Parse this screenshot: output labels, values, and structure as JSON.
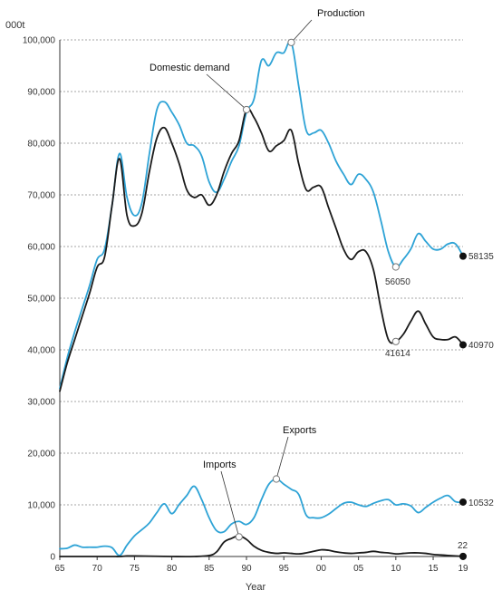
{
  "chart_data": {
    "type": "line",
    "unit_label": "000t",
    "xlabel": "Year",
    "ylabel": "",
    "ylim": [
      0,
      100000
    ],
    "yticks": [
      0,
      10000,
      20000,
      30000,
      40000,
      50000,
      60000,
      70000,
      80000,
      90000,
      100000
    ],
    "ytick_labels": [
      "0",
      "10,000",
      "20,000",
      "30,000",
      "40,000",
      "50,000",
      "60,000",
      "70,000",
      "80,000",
      "90,000",
      "100,000"
    ],
    "xlim": [
      1965,
      2019
    ],
    "xticks": [
      1965,
      1970,
      1975,
      1980,
      1985,
      1990,
      1995,
      2000,
      2005,
      2010,
      2015,
      2019
    ],
    "xtick_labels": [
      "65",
      "70",
      "75",
      "80",
      "85",
      "90",
      "95",
      "00",
      "05",
      "10",
      "15",
      "19"
    ],
    "grid": "horizontal-dashed",
    "series": [
      {
        "name": "Production",
        "color": "#2ea3d6",
        "x": [
          1965,
          1966,
          1967,
          1968,
          1969,
          1970,
          1971,
          1972,
          1973,
          1974,
          1975,
          1976,
          1977,
          1978,
          1979,
          1980,
          1981,
          1982,
          1983,
          1984,
          1985,
          1986,
          1987,
          1988,
          1989,
          1990,
          1991,
          1992,
          1993,
          1994,
          1995,
          1996,
          1997,
          1998,
          1999,
          2000,
          2001,
          2002,
          2003,
          2004,
          2005,
          2006,
          2007,
          2008,
          2009,
          2010,
          2011,
          2012,
          2013,
          2014,
          2015,
          2016,
          2017,
          2018,
          2019
        ],
        "y": [
          32500,
          38500,
          43500,
          48000,
          52500,
          57500,
          59500,
          68000,
          78000,
          69500,
          66000,
          68500,
          78000,
          86500,
          88000,
          86000,
          83500,
          80000,
          79500,
          77500,
          72500,
          70500,
          73000,
          76500,
          79500,
          86000,
          88500,
          96000,
          95000,
          97500,
          97500,
          99500,
          91000,
          82500,
          82000,
          82500,
          80000,
          76500,
          74000,
          72000,
          74000,
          73000,
          70500,
          65000,
          59000,
          56050,
          57500,
          59500,
          62500,
          61000,
          59500,
          59500,
          60500,
          60500,
          58135
        ]
      },
      {
        "name": "Domestic demand",
        "color": "#1a1a1a",
        "x": [
          1965,
          1966,
          1967,
          1968,
          1969,
          1970,
          1971,
          1972,
          1973,
          1974,
          1975,
          1976,
          1977,
          1978,
          1979,
          1980,
          1981,
          1982,
          1983,
          1984,
          1985,
          1986,
          1987,
          1988,
          1989,
          1990,
          1991,
          1992,
          1993,
          1994,
          1995,
          1996,
          1997,
          1998,
          1999,
          2000,
          2001,
          2002,
          2003,
          2004,
          2005,
          2006,
          2007,
          2008,
          2009,
          2010,
          2011,
          2012,
          2013,
          2014,
          2015,
          2016,
          2017,
          2018,
          2019
        ],
        "y": [
          32000,
          37500,
          42000,
          46500,
          51000,
          56000,
          58000,
          68000,
          77000,
          66000,
          64000,
          66500,
          74500,
          81000,
          83000,
          80000,
          76000,
          71000,
          69500,
          70000,
          68000,
          70000,
          74500,
          78000,
          80500,
          86500,
          85000,
          82000,
          78500,
          79500,
          80500,
          82500,
          76000,
          71000,
          71500,
          71500,
          67500,
          63500,
          59500,
          57500,
          59000,
          59000,
          55500,
          48000,
          42000,
          41614,
          43000,
          45500,
          47500,
          45000,
          42500,
          42000,
          42000,
          42500,
          40970
        ]
      },
      {
        "name": "Exports",
        "color": "#2ea3d6",
        "x": [
          1965,
          1966,
          1967,
          1968,
          1969,
          1970,
          1971,
          1972,
          1973,
          1974,
          1975,
          1976,
          1977,
          1978,
          1979,
          1980,
          1981,
          1982,
          1983,
          1984,
          1985,
          1986,
          1987,
          1988,
          1989,
          1990,
          1991,
          1992,
          1993,
          1994,
          1995,
          1996,
          1997,
          1998,
          1999,
          2000,
          2001,
          2002,
          2003,
          2004,
          2005,
          2006,
          2007,
          2008,
          2009,
          2010,
          2011,
          2012,
          2013,
          2014,
          2015,
          2016,
          2017,
          2018,
          2019
        ],
        "y": [
          1500,
          1600,
          2200,
          1800,
          1800,
          1800,
          2000,
          1700,
          200,
          2200,
          4000,
          5200,
          6500,
          8500,
          10200,
          8300,
          10100,
          11800,
          13600,
          11000,
          7500,
          5000,
          4800,
          6300,
          6800,
          6200,
          7500,
          11000,
          14000,
          15000,
          14000,
          13000,
          12000,
          8000,
          7500,
          7500,
          8200,
          9300,
          10300,
          10500,
          10000,
          9700,
          10300,
          10800,
          11000,
          10000,
          10200,
          9800,
          8500,
          9500,
          10500,
          11300,
          11800,
          10600,
          10532
        ]
      },
      {
        "name": "Imports",
        "color": "#1a1a1a",
        "x": [
          1965,
          1970,
          1972,
          1973,
          1974,
          1975,
          1980,
          1983,
          1985,
          1986,
          1987,
          1988,
          1989,
          1990,
          1991,
          1992,
          1993,
          1994,
          1995,
          1996,
          1997,
          1998,
          1999,
          2000,
          2001,
          2002,
          2003,
          2004,
          2005,
          2006,
          2007,
          2008,
          2009,
          2010,
          2011,
          2012,
          2013,
          2014,
          2015,
          2016,
          2017,
          2018,
          2019
        ],
        "y": [
          0,
          0,
          0,
          0,
          100,
          100,
          0,
          0,
          200,
          900,
          2800,
          3500,
          4000,
          3300,
          2000,
          1200,
          800,
          600,
          700,
          600,
          500,
          700,
          1000,
          1300,
          1200,
          900,
          700,
          600,
          700,
          800,
          1000,
          800,
          700,
          500,
          600,
          700,
          700,
          600,
          400,
          300,
          200,
          100,
          22
        ]
      }
    ],
    "annotations": [
      {
        "text": "Production",
        "series": "Production",
        "x": 1996,
        "y": 99500
      },
      {
        "text": "Domestic demand",
        "series": "Domestic demand",
        "x": 1990,
        "y": 86500
      },
      {
        "text": "Exports",
        "series": "Exports",
        "x": 1994,
        "y": 15000
      },
      {
        "text": "Imports",
        "series": "Imports",
        "x": 1989,
        "y": 3800
      },
      {
        "text": "56050",
        "series": "Production",
        "x": 2010,
        "y": 56050
      },
      {
        "text": "41614",
        "series": "Domestic demand",
        "x": 2010,
        "y": 41614
      },
      {
        "text": "58135",
        "series": "Production",
        "x": 2019,
        "y": 58135
      },
      {
        "text": "40970",
        "series": "Domestic demand",
        "x": 2019,
        "y": 40970
      },
      {
        "text": "10532",
        "series": "Exports",
        "x": 2019,
        "y": 10532
      },
      {
        "text": "22",
        "series": "Imports",
        "x": 2019,
        "y": 22
      }
    ]
  }
}
